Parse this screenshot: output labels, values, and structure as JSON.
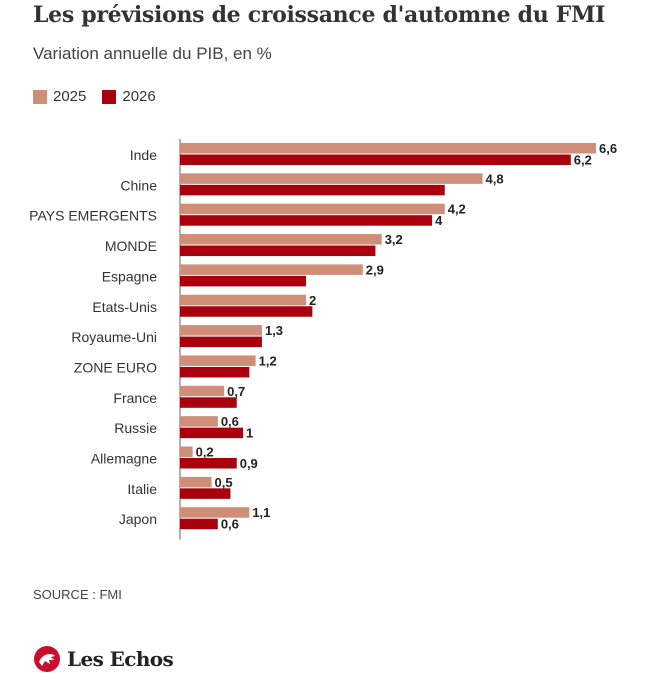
{
  "header": {
    "title": "Les prévisions de croissance d'automne du FMI",
    "subtitle": "Variation annuelle du PIB, en %"
  },
  "footer": {
    "source": "SOURCE : FMI",
    "brand": "Les Echos"
  },
  "colors": {
    "series_2025": "#cf8e78",
    "series_2026": "#a8000c",
    "axis": "#999999"
  },
  "chart_data": {
    "type": "bar",
    "orientation": "horizontal",
    "categories": [
      "Inde",
      "Chine",
      "PAYS EMERGENTS",
      "MONDE",
      "Espagne",
      "Etats-Unis",
      "Royaume-Uni",
      "ZONE EURO",
      "France",
      "Russie",
      "Allemagne",
      "Italie",
      "Japon"
    ],
    "series": [
      {
        "name": "2025",
        "values": [
          6.6,
          4.8,
          4.2,
          3.2,
          2.9,
          2,
          1.3,
          1.2,
          0.7,
          0.6,
          0.2,
          0.5,
          1.1
        ],
        "labels": [
          "6,6",
          "4,8",
          "4,2",
          "3,2",
          "2,9",
          "2",
          "1,3",
          "1,2",
          "0,7",
          "0,6",
          "0,2",
          "0,5",
          "1,1"
        ]
      },
      {
        "name": "2026",
        "values": [
          6.2,
          4.2,
          4,
          3.1,
          2.0,
          2.1,
          1.3,
          1.1,
          0.9,
          1,
          0.9,
          0.8,
          0.6
        ],
        "labels": [
          "6,2",
          "",
          "4",
          "",
          "",
          "",
          "",
          "",
          "",
          "1",
          "0,9",
          "",
          "0,6"
        ]
      }
    ],
    "xlim": [
      0,
      6.6
    ],
    "legend": "top-left",
    "grid": false
  }
}
